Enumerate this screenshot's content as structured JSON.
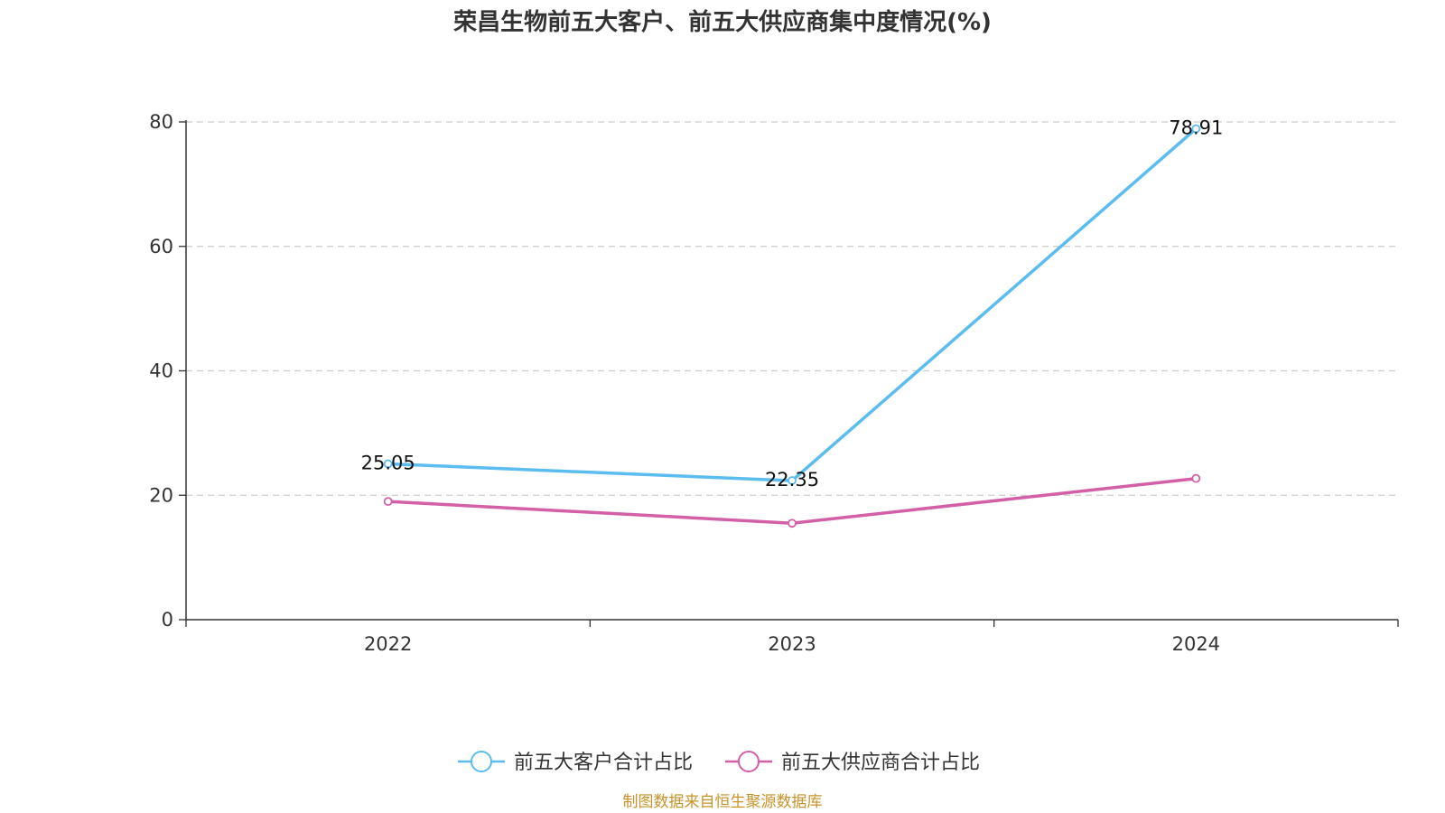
{
  "chart_data": {
    "type": "line",
    "title": "荣昌生物前五大客户、前五大供应商集中度情况(%)",
    "categories": [
      "2022",
      "2023",
      "2024"
    ],
    "ylim": [
      0,
      80
    ],
    "yticks": [
      0,
      20,
      40,
      60,
      80
    ],
    "grid": true,
    "xlabel": "",
    "ylabel": "",
    "legend_position": "bottom-center",
    "series": [
      {
        "name": "前五大客户合计占比",
        "color": "#5bbcef",
        "values": [
          25.05,
          22.35,
          78.91
        ],
        "show_labels": true
      },
      {
        "name": "前五大供应商合计占比",
        "color": "#d35fa6",
        "values": [
          19.0,
          15.5,
          22.7
        ],
        "show_labels": false
      }
    ]
  },
  "source": "制图数据来自恒生聚源数据库"
}
